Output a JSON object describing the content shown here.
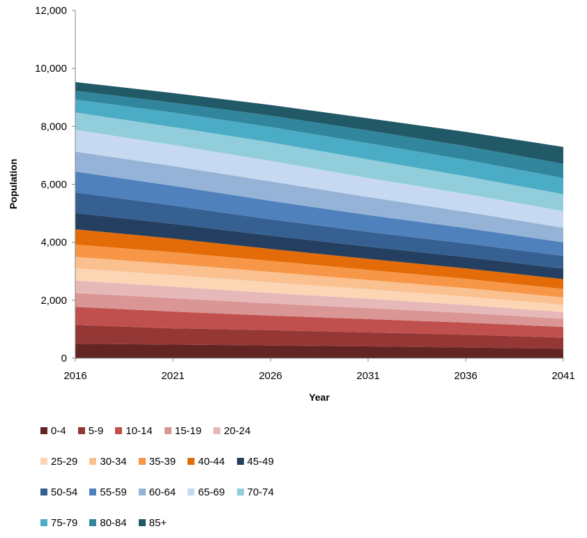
{
  "chart_data": {
    "type": "area",
    "stacked": true,
    "title": "",
    "xlabel": "Year",
    "ylabel": "Population",
    "x": [
      2016,
      2021,
      2026,
      2031,
      2036,
      2041
    ],
    "ylim": [
      0,
      12000
    ],
    "yticks": [
      "0",
      "2,000",
      "4,000",
      "6,000",
      "8,000",
      "10,000",
      "12,000"
    ],
    "xticks": [
      "2016",
      "2021",
      "2026",
      "2031",
      "2036",
      "2041"
    ],
    "grid": false,
    "legend_position": "bottom",
    "series": [
      {
        "name": "0-4",
        "color": "#632523",
        "values": [
          500,
          470,
          440,
          410,
          370,
          330
        ]
      },
      {
        "name": "5-9",
        "color": "#953735",
        "values": [
          650,
          560,
          530,
          480,
          440,
          380
        ]
      },
      {
        "name": "10-14",
        "color": "#c0504d",
        "values": [
          620,
          580,
          500,
          460,
          420,
          370
        ]
      },
      {
        "name": "15-19",
        "color": "#d99694",
        "values": [
          480,
          460,
          420,
          380,
          330,
          280
        ]
      },
      {
        "name": "20-24",
        "color": "#e6b9b8",
        "values": [
          430,
          400,
          360,
          320,
          280,
          230
        ]
      },
      {
        "name": "25-29",
        "color": "#fcd5b5",
        "values": [
          420,
          400,
          370,
          330,
          290,
          250
        ]
      },
      {
        "name": "30-34",
        "color": "#fac090",
        "values": [
          400,
          380,
          360,
          320,
          290,
          260
        ]
      },
      {
        "name": "35-39",
        "color": "#f79646",
        "values": [
          420,
          410,
          380,
          350,
          320,
          290
        ]
      },
      {
        "name": "40-44",
        "color": "#e36c09",
        "values": [
          530,
          470,
          410,
          380,
          360,
          340
        ]
      },
      {
        "name": "45-49",
        "color": "#243f60",
        "values": [
          560,
          510,
          460,
          420,
          390,
          360
        ]
      },
      {
        "name": "50-54",
        "color": "#366092",
        "values": [
          710,
          630,
          560,
          510,
          470,
          440
        ]
      },
      {
        "name": "55-59",
        "color": "#4f81bd",
        "values": [
          720,
          680,
          640,
          580,
          530,
          470
        ]
      },
      {
        "name": "60-64",
        "color": "#95b3d7",
        "values": [
          690,
          680,
          670,
          620,
          560,
          500
        ]
      },
      {
        "name": "65-69",
        "color": "#c6d9f0",
        "values": [
          750,
          730,
          710,
          660,
          620,
          580
        ]
      },
      {
        "name": "70-74",
        "color": "#92cddc",
        "values": [
          600,
          620,
          640,
          640,
          610,
          580
        ]
      },
      {
        "name": "75-79",
        "color": "#4bacc6",
        "values": [
          450,
          500,
          530,
          560,
          570,
          560
        ]
      },
      {
        "name": "80-84",
        "color": "#31859c",
        "values": [
          300,
          340,
          390,
          440,
          470,
          490
        ]
      },
      {
        "name": "85+",
        "color": "#215967",
        "values": [
          300,
          330,
          370,
          420,
          490,
          580
        ]
      }
    ]
  }
}
